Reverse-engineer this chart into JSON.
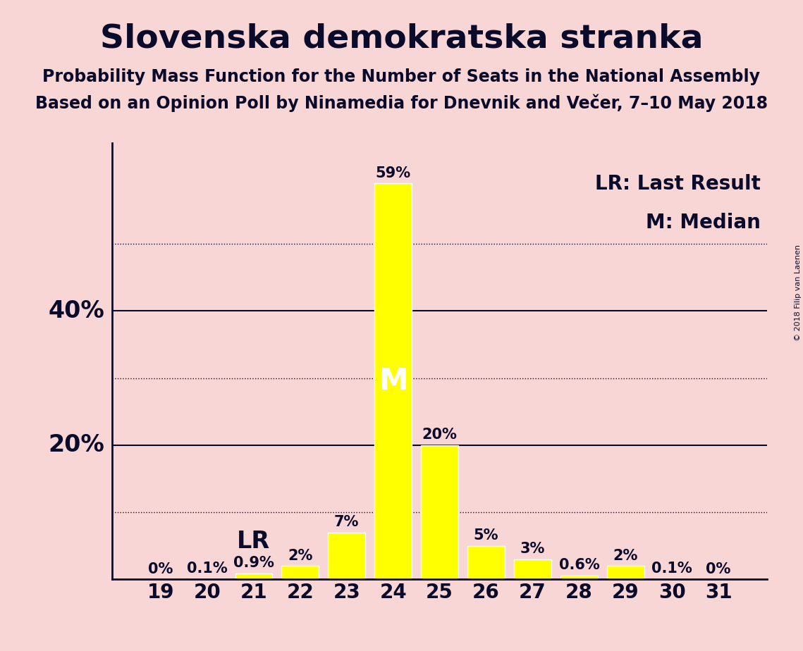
{
  "title": "Slovenska demokratska stranka",
  "subtitle1": "Probability Mass Function for the Number of Seats in the National Assembly",
  "subtitle2": "Based on an Opinion Poll by Ninamedia for Dnevnik and Večer, 7–10 May 2018",
  "copyright": "© 2018 Filip van Laenen",
  "seats": [
    19,
    20,
    21,
    22,
    23,
    24,
    25,
    26,
    27,
    28,
    29,
    30,
    31
  ],
  "probabilities": [
    0.0,
    0.1,
    0.9,
    2.0,
    7.0,
    59.0,
    20.0,
    5.0,
    3.0,
    0.6,
    2.0,
    0.1,
    0.0
  ],
  "labels": [
    "0%",
    "0.1%",
    "0.9%",
    "2%",
    "7%",
    "59%",
    "20%",
    "5%",
    "3%",
    "0.6%",
    "2%",
    "0.1%",
    "0%"
  ],
  "bar_color": "#FFFF00",
  "bar_edgecolor": "#FFFFFF",
  "background_color": "#F9D6D6",
  "text_color": "#0A0A2A",
  "median_seat": 24,
  "last_result_seat": 21,
  "solid_yticks": [
    20,
    40
  ],
  "dotted_yticks": [
    10,
    30,
    50
  ],
  "ylim": [
    0,
    65
  ],
  "title_fontsize": 34,
  "subtitle_fontsize": 17,
  "label_fontsize": 15,
  "tick_fontsize": 20,
  "annotation_fontsize": 24,
  "legend_fontsize": 20,
  "ylabel_fontsize": 24
}
